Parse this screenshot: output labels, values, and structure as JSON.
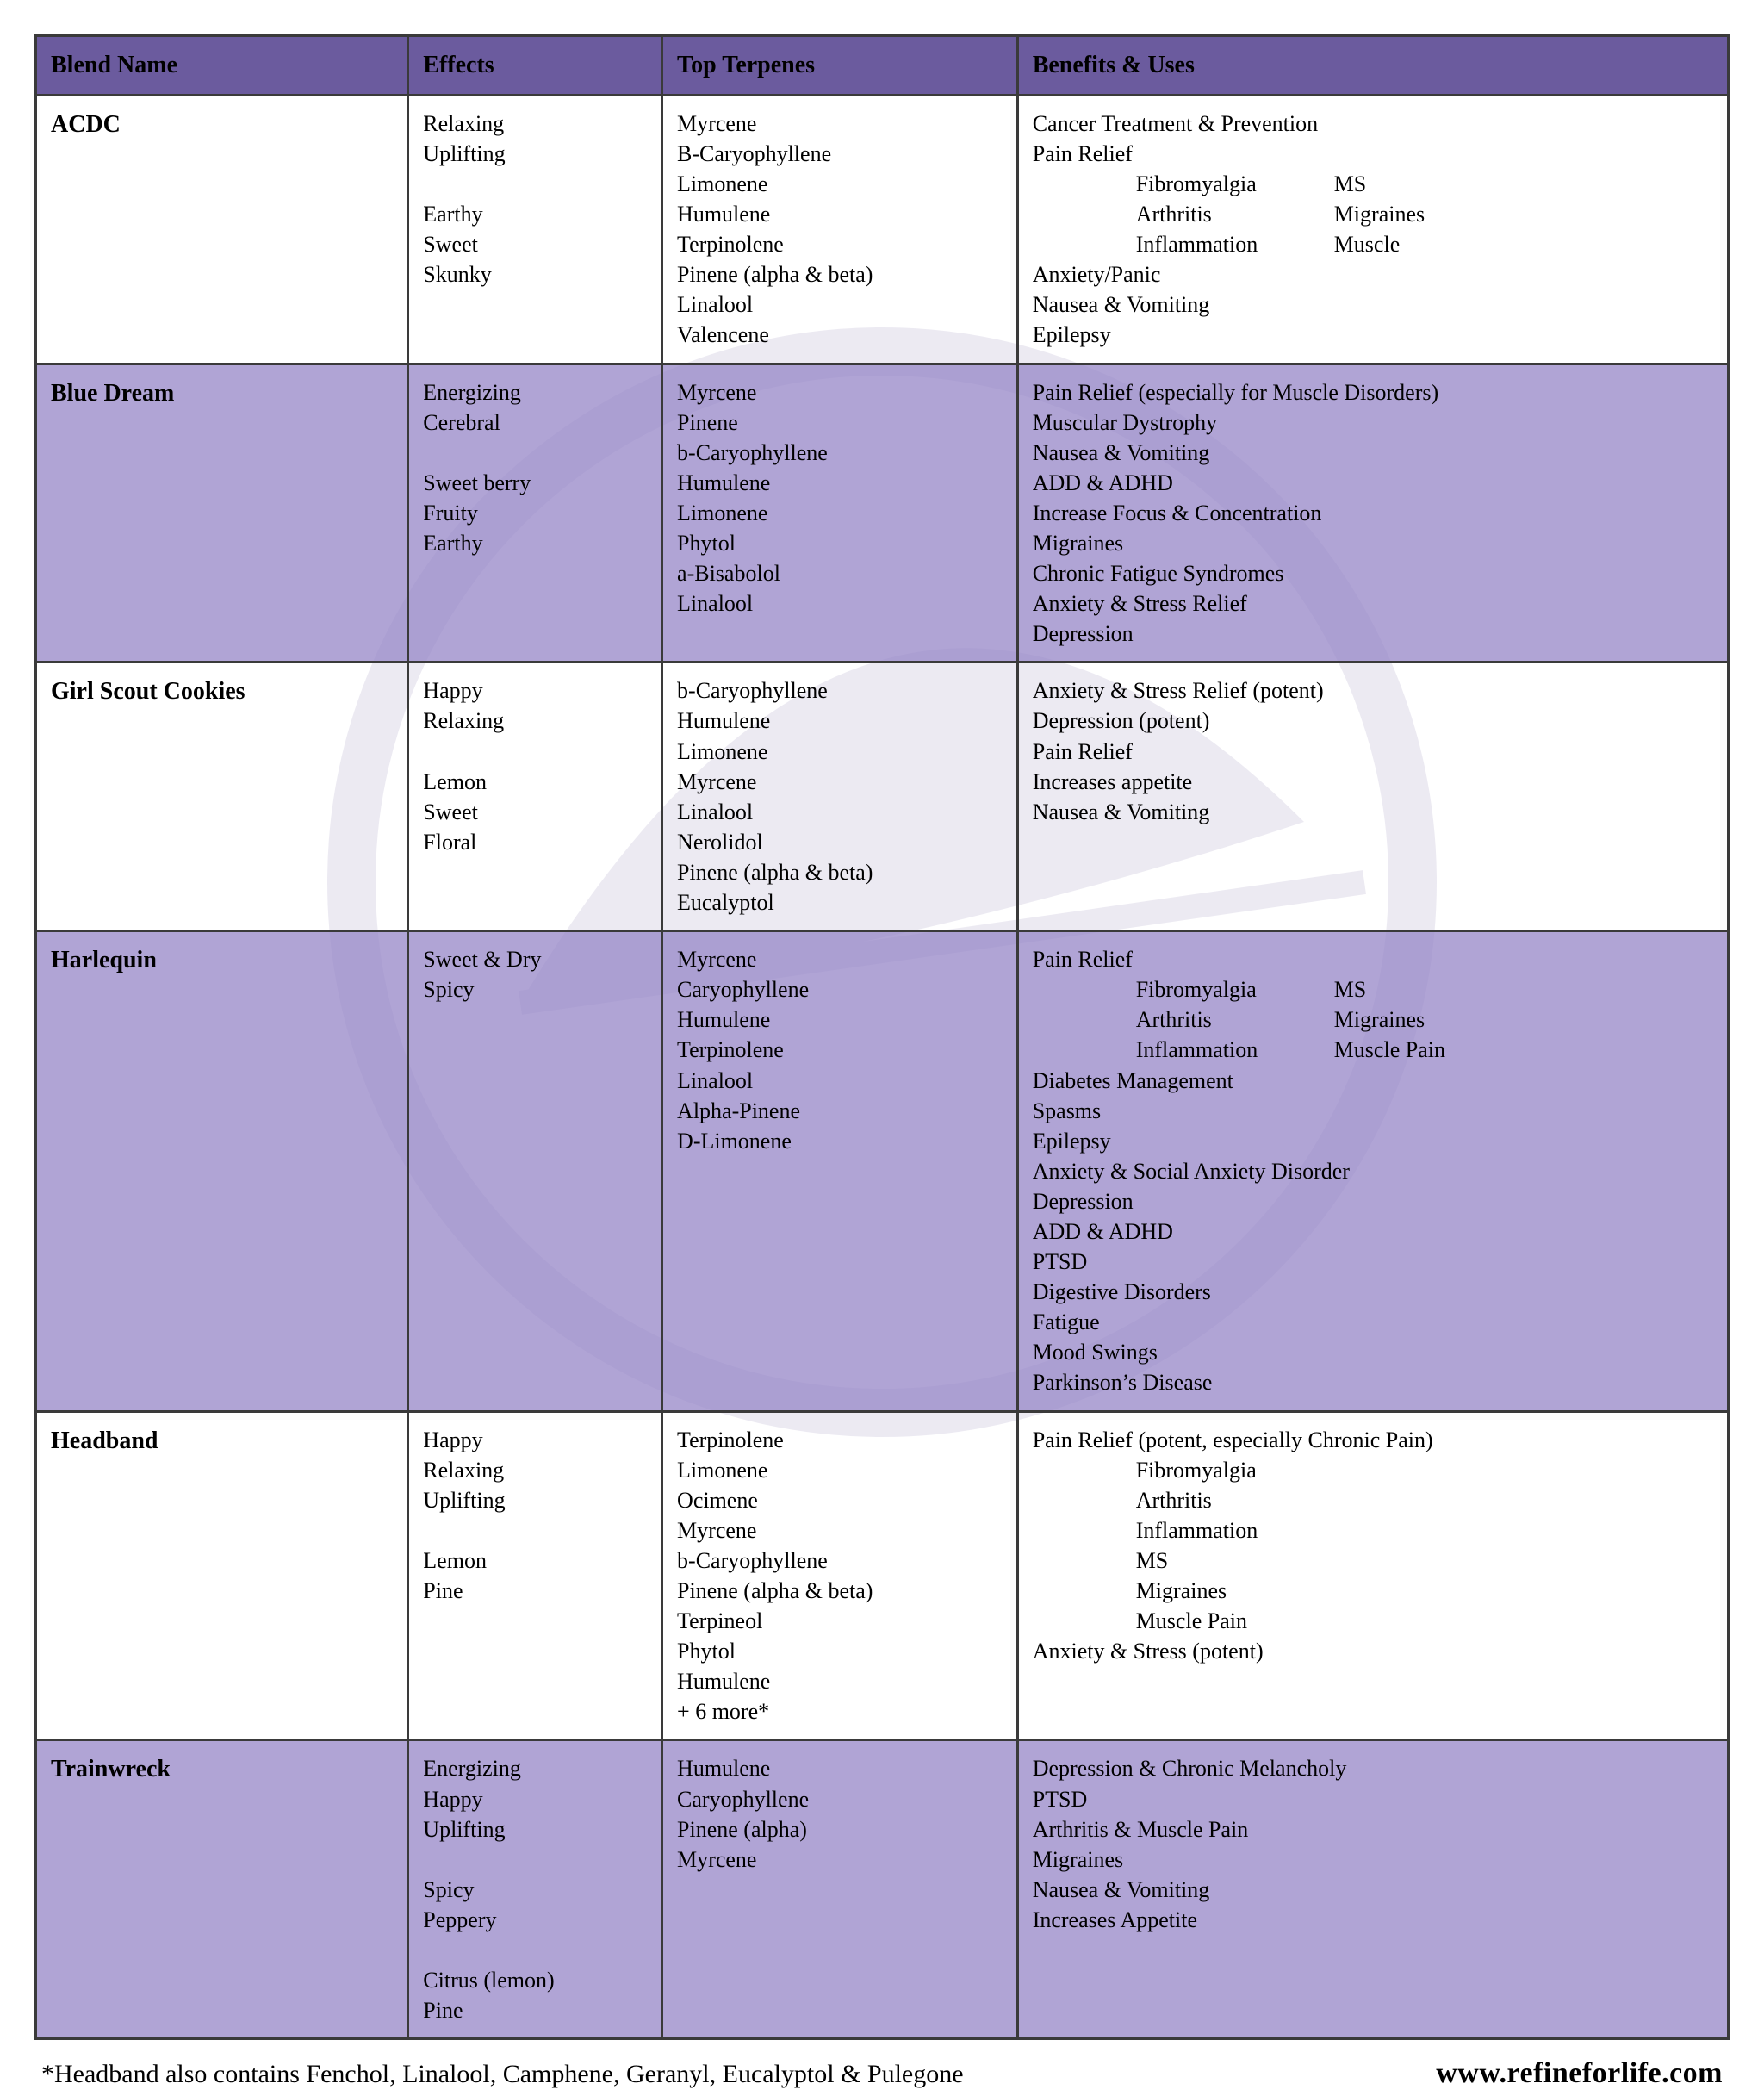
{
  "columns": [
    "Blend Name",
    "Effects",
    "Top Terpenes",
    "Benefits & Uses"
  ],
  "colors": {
    "header_bg": "#6b5b9e",
    "row_even_bg": "#9586c7",
    "border": "#3a3a3a",
    "text": "#000000"
  },
  "rows": [
    {
      "name": "ACDC",
      "effects": "Relaxing\nUplifting\n\nEarthy\nSweet\nSkunky",
      "terpenes": "Myrcene\nB-Caryophyllene\nLimonene\nHumulene\nTerpinolene\nPinene (alpha & beta)\nLinalool\nValencene",
      "benefits_lines": [
        {
          "t": "Cancer Treatment & Prevention"
        },
        {
          "t": "Pain Relief"
        },
        {
          "sub": [
            "Fibromyalgia",
            "MS"
          ]
        },
        {
          "sub": [
            "Arthritis",
            "Migraines"
          ]
        },
        {
          "sub": [
            "Inflammation",
            "Muscle"
          ]
        },
        {
          "t": "Anxiety/Panic"
        },
        {
          "t": "Nausea & Vomiting"
        },
        {
          "t": "Epilepsy"
        }
      ]
    },
    {
      "name": "Blue Dream",
      "effects": "Energizing\nCerebral\n\nSweet berry\nFruity\nEarthy",
      "terpenes": "Myrcene\nPinene\nb-Caryophyllene\nHumulene\nLimonene\nPhytol\na-Bisabolol\nLinalool",
      "benefits_lines": [
        {
          "t": "Pain Relief (especially for Muscle Disorders)"
        },
        {
          "t": "Muscular Dystrophy"
        },
        {
          "t": "Nausea & Vomiting"
        },
        {
          "t": "ADD & ADHD"
        },
        {
          "t": "Increase Focus & Concentration"
        },
        {
          "t": "Migraines"
        },
        {
          "t": "Chronic Fatigue Syndromes"
        },
        {
          "t": "Anxiety & Stress Relief"
        },
        {
          "t": "Depression"
        }
      ]
    },
    {
      "name": "Girl Scout Cookies",
      "effects": "Happy\nRelaxing\n\nLemon\nSweet\nFloral",
      "terpenes": "b-Caryophyllene\nHumulene\nLimonene\nMyrcene\nLinalool\nNerolidol\nPinene (alpha & beta)\nEucalyptol",
      "benefits_lines": [
        {
          "t": "Anxiety & Stress Relief (potent)"
        },
        {
          "t": "Depression (potent)"
        },
        {
          "t": "Pain Relief"
        },
        {
          "t": "Increases appetite"
        },
        {
          "t": "Nausea & Vomiting"
        }
      ]
    },
    {
      "name": "Harlequin",
      "effects": "Sweet & Dry\nSpicy",
      "terpenes": "Myrcene\nCaryophyllene\nHumulene\nTerpinolene\nLinalool\nAlpha-Pinene\nD-Limonene",
      "benefits_lines": [
        {
          "t": "Pain Relief"
        },
        {
          "sub": [
            "Fibromyalgia",
            "MS"
          ]
        },
        {
          "sub": [
            "Arthritis",
            "Migraines"
          ]
        },
        {
          "sub": [
            "Inflammation",
            "Muscle Pain"
          ]
        },
        {
          "t": "Diabetes Management"
        },
        {
          "t": "Spasms"
        },
        {
          "t": "Epilepsy"
        },
        {
          "t": "Anxiety & Social Anxiety Disorder"
        },
        {
          "t": "Depression"
        },
        {
          "t": "ADD & ADHD"
        },
        {
          "t": "PTSD"
        },
        {
          "t": "Digestive Disorders"
        },
        {
          "t": "Fatigue"
        },
        {
          "t": "Mood Swings"
        },
        {
          "t": "Parkinson’s Disease"
        }
      ]
    },
    {
      "name": "Headband",
      "effects": "Happy\nRelaxing\nUplifting\n\nLemon\nPine",
      "terpenes": "Terpinolene\nLimonene\nOcimene\nMyrcene\nb-Caryophyllene\nPinene (alpha & beta)\nTerpineol\nPhytol\nHumulene\n+ 6 more*",
      "benefits_lines": [
        {
          "t": "Pain Relief (potent, especially Chronic Pain)"
        },
        {
          "sub": [
            "Fibromyalgia"
          ]
        },
        {
          "sub": [
            "Arthritis"
          ]
        },
        {
          "sub": [
            "Inflammation"
          ]
        },
        {
          "sub": [
            "MS"
          ]
        },
        {
          "sub": [
            "Migraines"
          ]
        },
        {
          "sub": [
            "Muscle Pain"
          ]
        },
        {
          "t": "Anxiety & Stress (potent)"
        }
      ]
    },
    {
      "name": "Trainwreck",
      "effects": "Energizing\nHappy\nUplifting\n\nSpicy\nPeppery\n\nCitrus (lemon)\nPine",
      "terpenes": "Humulene\nCaryophyllene\nPinene (alpha)\nMyrcene",
      "benefits_lines": [
        {
          "t": "Depression & Chronic Melancholy"
        },
        {
          "t": "PTSD"
        },
        {
          "t": "Arthritis & Muscle Pain"
        },
        {
          "t": "Migraines"
        },
        {
          "t": "Nausea & Vomiting"
        },
        {
          "t": "Increases Appetite"
        }
      ]
    }
  ],
  "footnote": "*Headband also contains Fenchol, Linalool, Camphene, Geranyl, Eucalyptol & Pulegone",
  "url": "www.refineforlife.com"
}
